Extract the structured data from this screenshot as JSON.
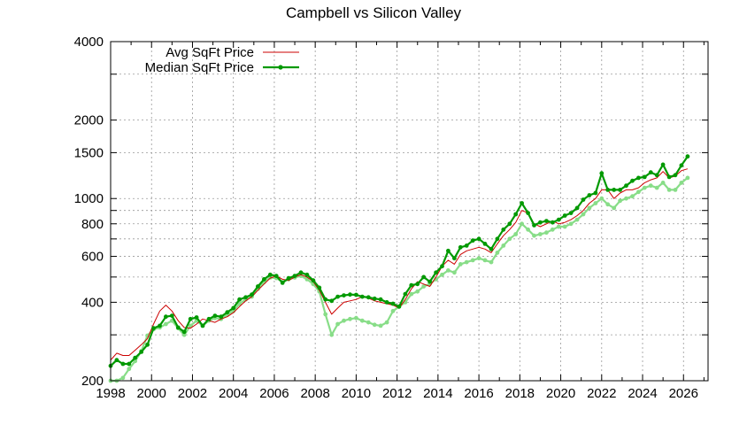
{
  "chart_data": {
    "type": "line",
    "title": "Campbell vs Silicon Valley",
    "xlabel": "",
    "ylabel": "",
    "xlim": [
      1998,
      2027.2
    ],
    "ylim": [
      200,
      4000
    ],
    "yscale": "log",
    "grid": true,
    "legend_position": "top-left",
    "x_ticks": [
      1998,
      2000,
      2002,
      2004,
      2006,
      2008,
      2010,
      2012,
      2014,
      2016,
      2018,
      2020,
      2022,
      2024,
      2026
    ],
    "y_ticks": [
      200,
      400,
      600,
      800,
      1000,
      1500,
      2000,
      4000
    ],
    "y_minor_ticks": [
      300,
      500,
      700,
      900,
      3000
    ],
    "x": [
      1998.0,
      1998.3,
      1998.6,
      1998.9,
      1999.2,
      1999.5,
      1999.8,
      2000.1,
      2000.4,
      2000.7,
      2001.0,
      2001.3,
      2001.6,
      2001.9,
      2002.2,
      2002.5,
      2002.8,
      2003.1,
      2003.4,
      2003.7,
      2004.0,
      2004.3,
      2004.6,
      2004.9,
      2005.2,
      2005.5,
      2005.8,
      2006.1,
      2006.4,
      2006.7,
      2007.0,
      2007.3,
      2007.6,
      2007.9,
      2008.2,
      2008.5,
      2008.8,
      2009.1,
      2009.4,
      2009.7,
      2010.0,
      2010.3,
      2010.6,
      2010.9,
      2011.2,
      2011.5,
      2011.8,
      2012.1,
      2012.4,
      2012.7,
      2013.0,
      2013.3,
      2013.6,
      2013.9,
      2014.2,
      2014.5,
      2014.8,
      2015.1,
      2015.4,
      2015.7,
      2016.0,
      2016.3,
      2016.6,
      2016.9,
      2017.2,
      2017.5,
      2017.8,
      2018.1,
      2018.4,
      2018.7,
      2019.0,
      2019.3,
      2019.6,
      2019.9,
      2020.2,
      2020.5,
      2020.8,
      2021.1,
      2021.4,
      2021.7,
      2022.0,
      2022.3,
      2022.6,
      2022.9,
      2023.2,
      2023.5,
      2023.8,
      2024.1,
      2024.4,
      2024.7,
      2025.0,
      2025.3,
      2025.6,
      2025.9,
      2026.2
    ],
    "series": [
      {
        "name": "Avg SqFt Price",
        "color": "#cc0000",
        "style": "thin-line",
        "values": [
          240,
          255,
          250,
          250,
          262,
          275,
          290,
          330,
          370,
          390,
          370,
          340,
          320,
          318,
          330,
          345,
          340,
          335,
          345,
          352,
          365,
          385,
          405,
          420,
          445,
          470,
          495,
          505,
          490,
          485,
          500,
          510,
          500,
          480,
          445,
          400,
          360,
          380,
          400,
          405,
          410,
          420,
          415,
          405,
          400,
          395,
          390,
          380,
          410,
          450,
          480,
          470,
          460,
          500,
          550,
          580,
          560,
          610,
          630,
          640,
          650,
          640,
          620,
          670,
          720,
          760,
          810,
          900,
          880,
          800,
          780,
          800,
          820,
          800,
          810,
          830,
          860,
          900,
          960,
          1000,
          1080,
          1080,
          1000,
          1050,
          1080,
          1080,
          1100,
          1150,
          1180,
          1200,
          1270,
          1200,
          1220,
          1280,
          1300
        ]
      },
      {
        "name": "Median SqFt Price",
        "color": "#009900",
        "style": "line-points",
        "values": [
          228,
          240,
          232,
          232,
          245,
          258,
          275,
          318,
          325,
          352,
          355,
          320,
          308,
          345,
          350,
          325,
          345,
          355,
          352,
          366,
          380,
          410,
          418,
          428,
          460,
          490,
          510,
          505,
          475,
          495,
          505,
          520,
          510,
          485,
          455,
          410,
          405,
          420,
          425,
          428,
          427,
          420,
          418,
          413,
          410,
          400,
          395,
          385,
          430,
          465,
          470,
          500,
          480,
          520,
          550,
          630,
          590,
          650,
          660,
          690,
          700,
          670,
          640,
          700,
          760,
          800,
          870,
          960,
          880,
          790,
          810,
          820,
          810,
          830,
          860,
          880,
          920,
          990,
          1030,
          1050,
          1250,
          1080,
          1080,
          1080,
          1120,
          1170,
          1200,
          1210,
          1260,
          1230,
          1350,
          1210,
          1230,
          1340,
          1450
        ]
      },
      {
        "name": "",
        "color": "#88dd88",
        "style": "line-points",
        "values": [
          200,
          200,
          205,
          222,
          238,
          260,
          298,
          315,
          320,
          330,
          340,
          318,
          300,
          325,
          340,
          325,
          340,
          348,
          345,
          358,
          370,
          395,
          410,
          420,
          450,
          478,
          498,
          495,
          478,
          490,
          498,
          505,
          490,
          470,
          440,
          360,
          300,
          330,
          340,
          345,
          348,
          340,
          335,
          328,
          325,
          335,
          370,
          385,
          400,
          430,
          440,
          460,
          470,
          490,
          510,
          530,
          520,
          560,
          570,
          580,
          590,
          580,
          570,
          620,
          660,
          700,
          730,
          800,
          760,
          720,
          730,
          740,
          760,
          780,
          780,
          800,
          830,
          870,
          920,
          960,
          1000,
          950,
          920,
          980,
          1000,
          1020,
          1060,
          1100,
          1120,
          1100,
          1150,
          1080,
          1080,
          1150,
          1200
        ]
      }
    ]
  }
}
